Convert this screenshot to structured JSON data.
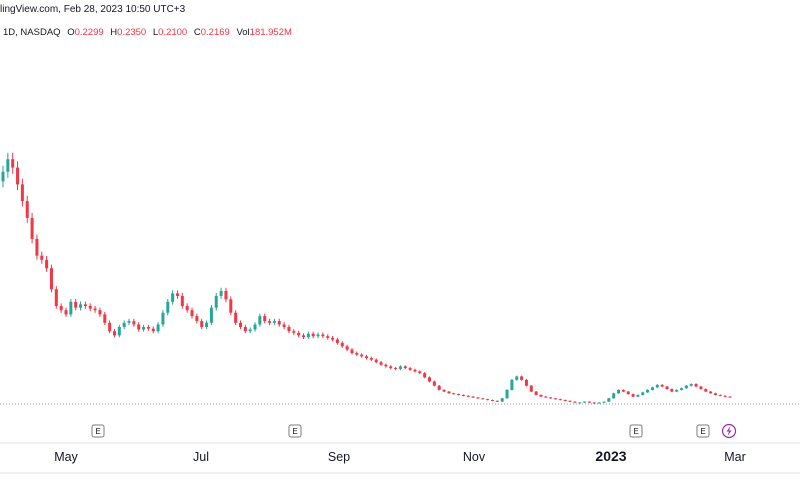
{
  "header": {
    "watermark_text": "lingView.com, Feb 28, 2023 10:50 UTC+3",
    "interval_exchange": "1D, NASDAQ",
    "ohlc": {
      "o_label": "O",
      "o_value": "0.2299",
      "h_label": "H",
      "h_value": "0.2350",
      "l_label": "L",
      "l_value": "0.2100",
      "c_label": "C",
      "c_value": "0.2169",
      "vol_label": "Vol",
      "vol_value": "181.952M"
    }
  },
  "colors": {
    "up": "#26a69a",
    "down": "#f23645",
    "axis_text": "#131722",
    "axis_line": "#e0e3eb",
    "dotted_line": "#9598a1",
    "dividend_icon": "#9c27b0"
  },
  "chart_data": {
    "type": "candlestick",
    "x_axis_ticks": [
      "May",
      "Jul",
      "Sep",
      "Nov",
      "2023",
      "Mar"
    ],
    "event_markers": [
      {
        "label": "E",
        "date": "Jun"
      },
      {
        "label": "E",
        "date": "Aug"
      },
      {
        "label": "E",
        "date": "Jan 2023"
      },
      {
        "label": "E",
        "date": "Feb 2023"
      }
    ],
    "dividend_marker": {
      "icon": "lightning-icon"
    },
    "series_closes": [
      2.9,
      3.05,
      2.95,
      2.75,
      2.55,
      2.35,
      2.1,
      1.9,
      1.85,
      1.75,
      1.5,
      1.3,
      1.25,
      1.2,
      1.35,
      1.28,
      1.32,
      1.3,
      1.27,
      1.25,
      1.2,
      1.1,
      1.0,
      0.95,
      1.05,
      1.1,
      1.12,
      1.08,
      1.02,
      1.05,
      1.03,
      1.0,
      1.08,
      1.22,
      1.35,
      1.45,
      1.42,
      1.3,
      1.25,
      1.18,
      1.12,
      1.05,
      1.1,
      1.28,
      1.42,
      1.48,
      1.38,
      1.22,
      1.1,
      1.05,
      1.0,
      1.02,
      1.08,
      1.18,
      1.12,
      1.1,
      1.12,
      1.08,
      1.05,
      1.0,
      0.98,
      0.95,
      0.93,
      0.97,
      0.94,
      0.96,
      0.94,
      0.92,
      0.9,
      0.86,
      0.82,
      0.78,
      0.74,
      0.72,
      0.7,
      0.68,
      0.66,
      0.63,
      0.6,
      0.58,
      0.56,
      0.55,
      0.58,
      0.56,
      0.54,
      0.52,
      0.5,
      0.45,
      0.4,
      0.35,
      0.3,
      0.28,
      0.26,
      0.25,
      0.24,
      0.23,
      0.22,
      0.21,
      0.2,
      0.19,
      0.18,
      0.17,
      0.16,
      0.2,
      0.3,
      0.42,
      0.46,
      0.42,
      0.35,
      0.28,
      0.24,
      0.22,
      0.21,
      0.2,
      0.19,
      0.18,
      0.17,
      0.16,
      0.15,
      0.15,
      0.16,
      0.15,
      0.14,
      0.15,
      0.16,
      0.2,
      0.26,
      0.3,
      0.28,
      0.25,
      0.22,
      0.24,
      0.27,
      0.3,
      0.33,
      0.36,
      0.34,
      0.31,
      0.28,
      0.3,
      0.32,
      0.35,
      0.37,
      0.34,
      0.31,
      0.28,
      0.26,
      0.24,
      0.23,
      0.22,
      0.217
    ]
  }
}
